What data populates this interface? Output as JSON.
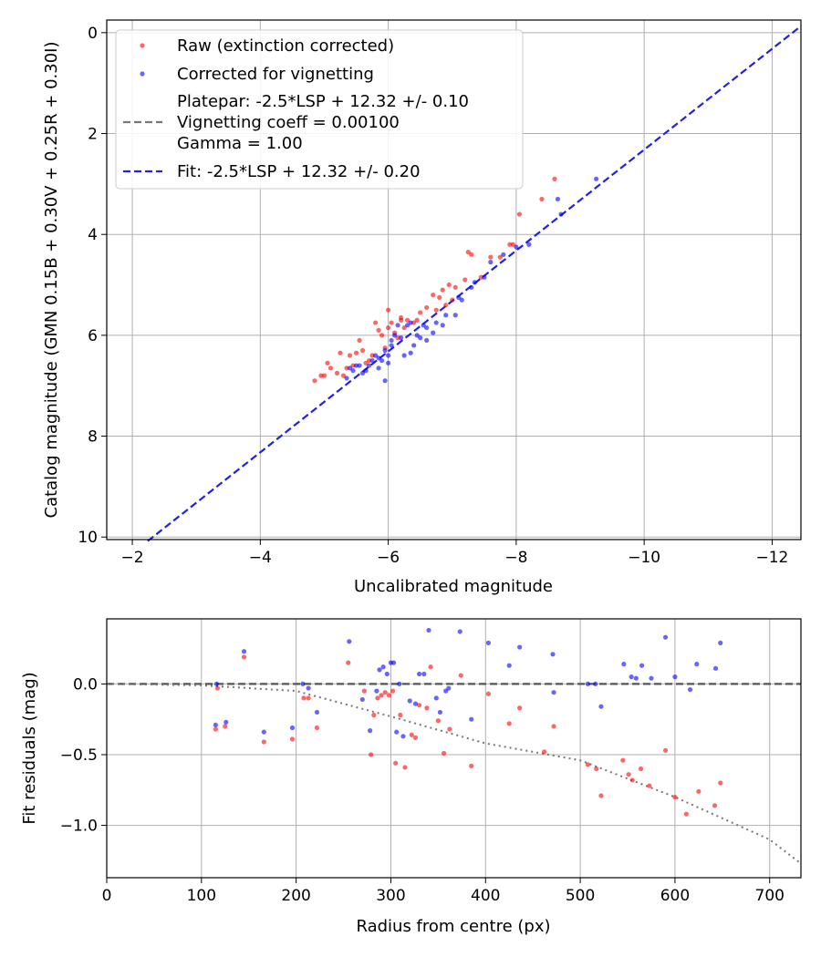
{
  "chart_data": [
    {
      "type": "scatter",
      "xlabel": "Uncalibrated magnitude",
      "ylabel": "Catalog magnitude (GMN 0.15B + 0.30V + 0.25R + 0.30I)",
      "xlim": [
        -1.6,
        -12.45
      ],
      "ylim": [
        10.05,
        -0.25
      ],
      "xticks": [
        -2,
        -4,
        -6,
        -8,
        -10,
        -12
      ],
      "xtick_labels": [
        "−2",
        "−4",
        "−6",
        "−8",
        "−10",
        "−12"
      ],
      "yticks": [
        0,
        2,
        4,
        6,
        8,
        10
      ],
      "ytick_labels": [
        "0",
        "2",
        "4",
        "6",
        "8",
        "10"
      ],
      "grid": true,
      "legend_position": "top-left",
      "legend": {
        "raw": "Raw (extinction corrected)",
        "corrected": "Corrected for vignetting",
        "platepar_lines": [
          "Platepar: -2.5*LSP + 12.32 +/- 0.10",
          "Vignetting coeff = 0.00100",
          "Gamma = 1.00"
        ],
        "fit": "Fit: -2.5*LSP + 12.32 +/- 0.20"
      },
      "fit_line": {
        "slope_equation": "cat = 12.32 + 1.0 * uncal",
        "x": [
          -2.24,
          -12.45
        ],
        "y": [
          10.08,
          -0.13
        ]
      },
      "series": [
        {
          "name": "Raw (extinction corrected)",
          "color": "#ff0000",
          "x": [
            -8.6,
            -8.4,
            -8.05,
            -7.95,
            -7.9,
            -7.75,
            -7.6,
            -7.45,
            -7.3,
            -7.25,
            -7.2,
            -7.05,
            -7.0,
            -6.95,
            -6.9,
            -6.85,
            -6.8,
            -6.75,
            -6.7,
            -6.6,
            -6.5,
            -6.45,
            -6.4,
            -6.3,
            -6.25,
            -6.2,
            -6.2,
            -6.15,
            -6.1,
            -6.05,
            -6.0,
            -6.0,
            -5.95,
            -5.9,
            -5.85,
            -5.8,
            -5.75,
            -5.7,
            -5.65,
            -5.6,
            -5.55,
            -5.5,
            -5.45,
            -5.4,
            -5.35,
            -5.3,
            -5.25,
            -5.2,
            -5.1,
            -5.05,
            -5.0,
            -4.95,
            -4.85
          ],
          "y": [
            2.9,
            3.3,
            3.6,
            4.2,
            4.2,
            4.45,
            4.45,
            4.85,
            4.4,
            4.35,
            4.9,
            5.05,
            5.3,
            5.0,
            5.4,
            5.1,
            5.25,
            5.5,
            5.2,
            5.45,
            5.55,
            5.7,
            5.75,
            5.7,
            5.85,
            5.65,
            5.7,
            6.05,
            5.95,
            5.75,
            5.5,
            5.85,
            6.25,
            6.0,
            5.9,
            5.75,
            6.4,
            6.5,
            6.55,
            6.3,
            6.1,
            6.35,
            6.6,
            6.4,
            6.65,
            6.8,
            6.35,
            6.75,
            6.65,
            6.55,
            6.8,
            6.8,
            6.9
          ]
        },
        {
          "name": "Corrected for vignetting",
          "color": "#0000ff",
          "x": [
            -9.25,
            -8.65,
            -8.7,
            -8.2,
            -8.0,
            -7.8,
            -7.6,
            -7.5,
            -7.35,
            -7.3,
            -7.15,
            -7.1,
            -7.05,
            -6.9,
            -6.85,
            -6.75,
            -6.6,
            -6.55,
            -6.5,
            -6.45,
            -6.4,
            -6.35,
            -6.3,
            -6.25,
            -6.2,
            -6.15,
            -6.1,
            -6.05,
            -6.0,
            -5.95,
            -5.9,
            -5.85,
            -5.8,
            -5.75,
            -5.7,
            -5.65,
            -5.6,
            -5.5,
            -5.45,
            -5.4,
            -5.35,
            -5.55,
            -6.0,
            -6.35,
            -6.6,
            -6.7,
            -5.85,
            -5.95,
            -6.05
          ],
          "y": [
            2.9,
            3.3,
            3.6,
            4.2,
            4.25,
            4.4,
            4.55,
            4.85,
            4.95,
            5.05,
            5.3,
            5.25,
            5.6,
            5.6,
            5.8,
            5.75,
            5.85,
            5.8,
            6.05,
            6.0,
            6.2,
            5.75,
            5.8,
            6.4,
            6.05,
            5.8,
            6.0,
            6.1,
            6.55,
            6.3,
            6.5,
            6.45,
            6.4,
            6.5,
            6.6,
            6.7,
            6.75,
            6.6,
            6.7,
            6.65,
            6.85,
            6.6,
            6.4,
            6.35,
            6.1,
            5.95,
            6.65,
            6.9,
            6.2
          ]
        }
      ]
    },
    {
      "type": "scatter",
      "xlabel": "Radius from centre (px)",
      "ylabel": "Fit residuals (mag)",
      "xlim": [
        0,
        733
      ],
      "ylim": [
        -1.37,
        0.46
      ],
      "xticks": [
        0,
        100,
        200,
        300,
        400,
        500,
        600,
        700
      ],
      "xtick_labels": [
        "0",
        "100",
        "200",
        "300",
        "400",
        "500",
        "600",
        "700"
      ],
      "yticks": [
        0.0,
        -0.5,
        -1.0
      ],
      "ytick_labels": [
        "0.0",
        "−0.5",
        "−1.0"
      ],
      "grid": true,
      "reference_lines": [
        {
          "name": "zero",
          "style": "dashed",
          "color": "#555555"
        },
        {
          "name": "vignetting model",
          "style": "dotted",
          "color": "#777777",
          "x": [
            0,
            100,
            200,
            300,
            400,
            500,
            600,
            700,
            733
          ],
          "y": [
            0,
            -0.01,
            -0.05,
            -0.23,
            -0.42,
            -0.54,
            -0.8,
            -1.1,
            -1.27
          ]
        }
      ],
      "series": [
        {
          "name": "Raw (extinction corrected)",
          "color": "#ff0000",
          "x": [
            115,
            117,
            125,
            145,
            166,
            196,
            208,
            213,
            222,
            255,
            272,
            279,
            282,
            286,
            290,
            294,
            298,
            302,
            305,
            310,
            315,
            322,
            326,
            330,
            338,
            342,
            350,
            356,
            362,
            374,
            385,
            403,
            425,
            436,
            462,
            472,
            508,
            517,
            522,
            545,
            551,
            555,
            564,
            573,
            590,
            600,
            612,
            625,
            642,
            648
          ],
          "y": [
            -0.32,
            -0.03,
            -0.3,
            0.19,
            -0.41,
            -0.39,
            -0.1,
            -0.1,
            -0.31,
            0.15,
            -0.05,
            -0.5,
            -0.22,
            -0.1,
            -0.08,
            -0.06,
            -0.08,
            -0.05,
            -0.56,
            -0.22,
            -0.59,
            -0.36,
            -0.38,
            -0.15,
            -0.17,
            0.12,
            -0.26,
            -0.49,
            -0.32,
            0.06,
            -0.58,
            -0.07,
            -0.28,
            -0.17,
            -0.48,
            -0.3,
            -0.57,
            -0.6,
            -0.79,
            -0.54,
            -0.64,
            -0.68,
            -0.6,
            -0.72,
            -0.47,
            -0.8,
            -0.92,
            -0.76,
            -0.86,
            -0.7
          ]
        },
        {
          "name": "Corrected for vignetting",
          "color": "#0000ff",
          "x": [
            115,
            116,
            126,
            145,
            166,
            196,
            207,
            213,
            222,
            256,
            270,
            278,
            285,
            288,
            292,
            296,
            300,
            303,
            306,
            309,
            313,
            320,
            326,
            330,
            335,
            340,
            348,
            352,
            358,
            361,
            373,
            385,
            403,
            425,
            436,
            471,
            472,
            508,
            516,
            522,
            546,
            554,
            559,
            565,
            575,
            590,
            600,
            616,
            623,
            643,
            648
          ],
          "y": [
            -0.29,
            0.0,
            -0.27,
            0.23,
            -0.34,
            -0.31,
            0.0,
            -0.03,
            -0.2,
            0.3,
            -0.11,
            -0.33,
            -0.05,
            0.1,
            0.12,
            0.07,
            0.15,
            0.15,
            -0.34,
            0.0,
            -0.37,
            -0.12,
            -0.14,
            0.07,
            0.07,
            0.38,
            -0.1,
            -0.2,
            -0.05,
            -0.03,
            0.37,
            -0.25,
            0.29,
            0.13,
            0.26,
            0.21,
            -0.06,
            0.0,
            0.0,
            -0.16,
            0.14,
            0.05,
            0.04,
            0.13,
            0.04,
            0.33,
            0.05,
            -0.04,
            0.14,
            0.11,
            0.29
          ]
        }
      ]
    }
  ]
}
